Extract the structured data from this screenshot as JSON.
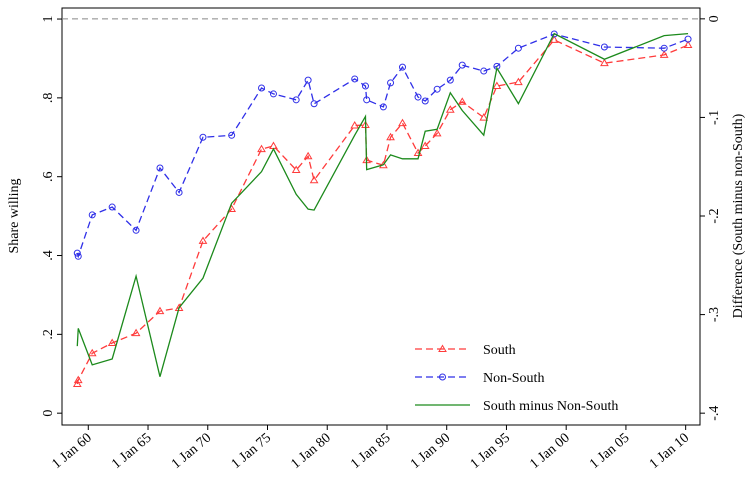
{
  "chart_data": {
    "type": "line",
    "x": [
      1959.08,
      1959.16,
      1960.33,
      1962.0,
      1964.0,
      1966.0,
      1967.6,
      1969.6,
      1972.0,
      1974.5,
      1975.5,
      1977.4,
      1978.4,
      1978.9,
      1982.3,
      1983.2,
      1983.3,
      1984.7,
      1985.3,
      1986.3,
      1987.6,
      1988.2,
      1989.2,
      1990.3,
      1991.3,
      1993.1,
      1994.2,
      1996.0,
      1999.0,
      2003.2,
      2008.2,
      2010.2
    ],
    "series": [
      {
        "name": "South",
        "color": "#ff3b3b",
        "marker": "triangle",
        "dash": true,
        "values": [
          0.074,
          0.084,
          0.152,
          0.178,
          0.203,
          0.259,
          0.267,
          0.437,
          0.518,
          0.67,
          0.678,
          0.617,
          0.652,
          0.591,
          0.73,
          0.731,
          0.642,
          0.629,
          0.7,
          0.736,
          0.66,
          0.678,
          0.71,
          0.77,
          0.79,
          0.75,
          0.83,
          0.84,
          0.947,
          0.888,
          0.909,
          0.934
        ]
      },
      {
        "name": "Non-South",
        "color": "#2f2fe8",
        "marker": "circle",
        "dash": true,
        "values": [
          0.406,
          0.398,
          0.503,
          0.523,
          0.464,
          0.622,
          0.56,
          0.7,
          0.705,
          0.825,
          0.81,
          0.795,
          0.845,
          0.785,
          0.848,
          0.83,
          0.795,
          0.777,
          0.838,
          0.878,
          0.802,
          0.792,
          0.822,
          0.845,
          0.883,
          0.868,
          0.88,
          0.926,
          0.962,
          0.929,
          0.926,
          0.949
        ]
      },
      {
        "name": "South minus Non-South",
        "color": "#1c8a1c",
        "axis": "y2",
        "dash": false,
        "values": [
          -0.332,
          -0.314,
          -0.351,
          -0.345,
          -0.261,
          -0.363,
          -0.293,
          -0.263,
          -0.187,
          -0.155,
          -0.132,
          -0.178,
          -0.193,
          -0.194,
          -0.118,
          -0.099,
          -0.153,
          -0.148,
          -0.138,
          -0.142,
          -0.142,
          -0.114,
          -0.112,
          -0.075,
          -0.093,
          -0.118,
          -0.05,
          -0.086,
          -0.015,
          -0.041,
          -0.017,
          -0.015
        ]
      }
    ],
    "xlim": [
      1957.8,
      2011.2
    ],
    "xticks": [
      {
        "value": 1960,
        "label": "1 Jan 60"
      },
      {
        "value": 1965,
        "label": "1 Jan 65"
      },
      {
        "value": 1970,
        "label": "1 Jan 70"
      },
      {
        "value": 1975,
        "label": "1 Jan 75"
      },
      {
        "value": 1980,
        "label": "1 Jan 80"
      },
      {
        "value": 1985,
        "label": "1 Jan 85"
      },
      {
        "value": 1990,
        "label": "1 Jan 90"
      },
      {
        "value": 1995,
        "label": "1 Jan 95"
      },
      {
        "value": 2000,
        "label": "1 Jan 00"
      },
      {
        "value": 2005,
        "label": "1 Jan 05"
      },
      {
        "value": 2010,
        "label": "1 Jan 10"
      }
    ],
    "ylim": [
      -0.03,
      1.028
    ],
    "yticks": [
      0,
      {
        "value": 0.2,
        "label": ".2"
      },
      {
        "value": 0.4,
        "label": ".4"
      },
      {
        "value": 0.6,
        "label": ".6"
      },
      {
        "value": 0.8,
        "label": ".8"
      },
      1
    ],
    "y2lim": [
      -0.412,
      0.011
    ],
    "y2ticks": [
      0,
      {
        "value": -0.1,
        "label": "-.1"
      },
      {
        "value": -0.2,
        "label": "-.2"
      },
      {
        "value": -0.3,
        "label": "-.3"
      },
      {
        "value": -0.4,
        "label": "-.4"
      }
    ],
    "ylabel": "Share willing",
    "y2label": "Difference (South minus non-South)",
    "legend_position": "lower right"
  }
}
